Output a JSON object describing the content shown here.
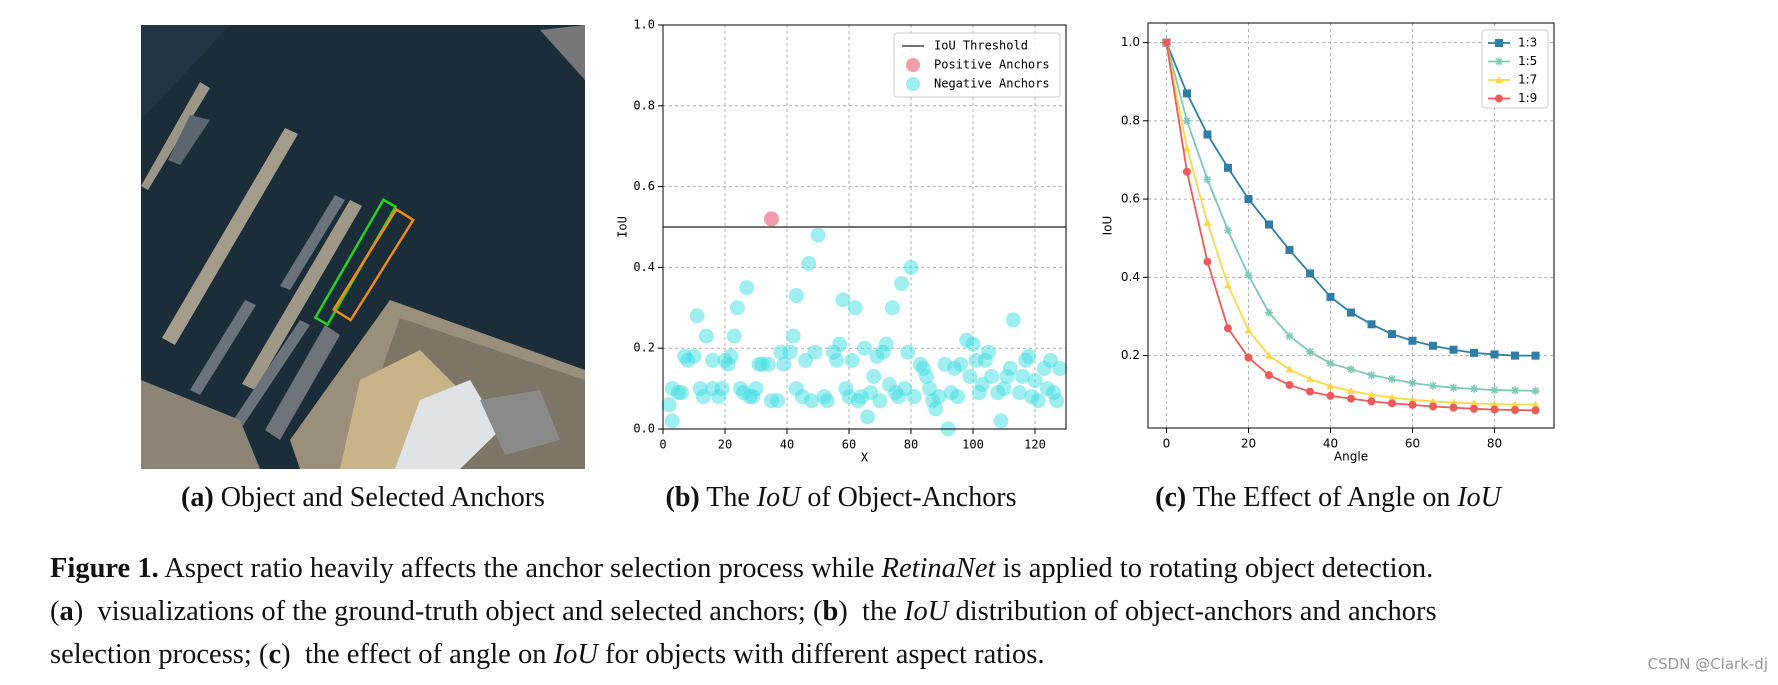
{
  "subcaptions": [
    [
      {
        "text": "(a)",
        "style": "bold"
      },
      {
        "text": " Object and Selected Anchors",
        "style": "normal"
      }
    ],
    [
      {
        "text": "(b)",
        "style": "bold"
      },
      {
        "text": " The ",
        "style": "normal"
      },
      {
        "text": "IoU",
        "style": "italic"
      },
      {
        "text": " of Object-Anchors",
        "style": "normal"
      }
    ],
    [
      {
        "text": "(c)",
        "style": "bold"
      },
      {
        "text": " The Effect of Angle on ",
        "style": "normal"
      },
      {
        "text": "IoU",
        "style": "italic"
      }
    ]
  ],
  "caption": [
    [
      {
        "text": "Figure 1.",
        "style": "bold"
      },
      {
        "text": " Aspect ratio heavily affects the anchor selection process while ",
        "style": "normal"
      },
      {
        "text": "RetinaNet",
        "style": "italic"
      },
      {
        "text": " is applied to rotating object detection.",
        "style": "normal"
      }
    ],
    [
      {
        "text": "(",
        "style": "normal"
      },
      {
        "text": "a",
        "style": "bold"
      },
      {
        "text": ")  visualizations of the ground-truth object and selected anchors; (",
        "style": "normal"
      },
      {
        "text": "b",
        "style": "bold"
      },
      {
        "text": ")  the ",
        "style": "normal"
      },
      {
        "text": "IoU",
        "style": "italic"
      },
      {
        "text": " distribution of object-anchors and anchors",
        "style": "normal"
      }
    ],
    [
      {
        "text": "selection process; (",
        "style": "normal"
      },
      {
        "text": "c",
        "style": "bold"
      },
      {
        "text": ")  the effect of angle on ",
        "style": "normal"
      },
      {
        "text": "IoU",
        "style": "italic"
      },
      {
        "text": " for objects with different aspect ratios.",
        "style": "normal"
      }
    ]
  ],
  "watermark": "CSDN @Clark-dj",
  "chart_data": [
    {
      "type": "scatter",
      "xlabel": "X",
      "ylabel": "IoU",
      "xlim": [
        0,
        130
      ],
      "ylim": [
        0,
        1
      ],
      "xticks": [
        0,
        20,
        40,
        60,
        80,
        100,
        120
      ],
      "yticks": [
        {
          "value": 0,
          "label": "0.0"
        },
        {
          "value": 0.2,
          "label": "0.2"
        },
        {
          "value": 0.4,
          "label": "0.4"
        },
        {
          "value": 0.6,
          "label": "0.6"
        },
        {
          "value": 0.8,
          "label": "0.8"
        },
        {
          "value": 1,
          "label": "1.0"
        }
      ],
      "grid": true,
      "legend": "upper right",
      "threshold": {
        "name": "IoU Threshold",
        "value": 0.5,
        "color": "#222222"
      },
      "series": [
        {
          "name": "Positive Anchors",
          "color": "#f07a90",
          "x": [
            35
          ],
          "values": [
            0.52
          ]
        },
        {
          "name": "Negative Anchors",
          "color": "#3fdde2",
          "x": [
            2,
            3,
            3,
            5,
            6,
            7,
            8,
            10,
            11,
            12,
            13,
            14,
            16,
            16,
            18,
            19,
            20,
            21,
            22,
            23,
            24,
            25,
            26,
            27,
            28,
            29,
            30,
            31,
            32,
            34,
            35,
            37,
            38,
            39,
            41,
            42,
            43,
            43,
            45,
            46,
            47,
            48,
            49,
            50,
            52,
            53,
            55,
            56,
            57,
            58,
            59,
            60,
            61,
            62,
            63,
            64,
            65,
            66,
            67,
            68,
            69,
            70,
            71,
            72,
            73,
            74,
            75,
            76,
            77,
            78,
            79,
            80,
            81,
            83,
            84,
            85,
            86,
            87,
            88,
            89,
            91,
            92,
            93,
            94,
            95,
            96,
            98,
            99,
            100,
            101,
            102,
            103,
            104,
            105,
            106,
            108,
            109,
            110,
            111,
            112,
            113,
            115,
            116,
            117,
            118,
            119,
            120,
            121,
            123,
            124,
            125,
            126,
            127,
            128
          ],
          "values": [
            0.06,
            0.1,
            0.02,
            0.09,
            0.09,
            0.18,
            0.17,
            0.18,
            0.28,
            0.1,
            0.08,
            0.23,
            0.17,
            0.1,
            0.08,
            0.1,
            0.17,
            0.16,
            0.18,
            0.23,
            0.3,
            0.1,
            0.09,
            0.35,
            0.08,
            0.08,
            0.1,
            0.16,
            0.16,
            0.16,
            0.07,
            0.07,
            0.19,
            0.16,
            0.19,
            0.23,
            0.33,
            0.1,
            0.08,
            0.17,
            0.41,
            0.07,
            0.19,
            0.48,
            0.08,
            0.07,
            0.19,
            0.17,
            0.21,
            0.32,
            0.1,
            0.08,
            0.17,
            0.3,
            0.07,
            0.08,
            0.2,
            0.03,
            0.09,
            0.13,
            0.18,
            0.07,
            0.19,
            0.21,
            0.11,
            0.3,
            0.09,
            0.08,
            0.36,
            0.1,
            0.19,
            0.4,
            0.08,
            0.16,
            0.15,
            0.13,
            0.1,
            0.07,
            0.05,
            0.08,
            0.16,
            0,
            0.09,
            0.15,
            0.08,
            0.16,
            0.22,
            0.13,
            0.21,
            0.17,
            0.09,
            0.11,
            0.17,
            0.19,
            0.13,
            0.09,
            0.02,
            0.1,
            0.13,
            0.15,
            0.27,
            0.09,
            0.13,
            0.17,
            0.18,
            0.08,
            0.12,
            0.07,
            0.15,
            0.1,
            0.17,
            0.09,
            0.07,
            0.15
          ]
        }
      ]
    },
    {
      "type": "line",
      "xlabel": "Angle",
      "ylabel": "IoU",
      "xlim": [
        -4.5,
        94.5
      ],
      "ylim": [
        0.015,
        1.05
      ],
      "xticks": [
        0,
        20,
        40,
        60,
        80
      ],
      "yticks": [
        0.2,
        0.4,
        0.6,
        0.8,
        {
          "value": 1,
          "label": "1.0"
        }
      ],
      "grid": true,
      "legend": "upper right",
      "x": [
        0,
        5,
        10,
        15,
        20,
        25,
        30,
        35,
        40,
        45,
        50,
        55,
        60,
        65,
        70,
        75,
        80,
        85,
        90
      ],
      "series": [
        {
          "name": "1:3",
          "color": "#2e7ea6",
          "marker": "square",
          "values": [
            1.0,
            0.87,
            0.765,
            0.68,
            0.6,
            0.535,
            0.47,
            0.41,
            0.35,
            0.31,
            0.28,
            0.255,
            0.238,
            0.225,
            0.215,
            0.207,
            0.203,
            0.2,
            0.2
          ]
        },
        {
          "name": "1:5",
          "color": "#7ec8b8",
          "marker": "star",
          "values": [
            1.0,
            0.8,
            0.65,
            0.52,
            0.405,
            0.31,
            0.25,
            0.21,
            0.18,
            0.165,
            0.15,
            0.14,
            0.13,
            0.123,
            0.118,
            0.115,
            0.112,
            0.111,
            0.11
          ]
        },
        {
          "name": "1:7",
          "color": "#f9d94a",
          "marker": "triangle",
          "values": [
            1.0,
            0.73,
            0.54,
            0.38,
            0.265,
            0.2,
            0.165,
            0.14,
            0.122,
            0.11,
            0.1,
            0.093,
            0.087,
            0.083,
            0.08,
            0.078,
            0.076,
            0.075,
            0.075
          ]
        },
        {
          "name": "1:9",
          "color": "#ec5a5a",
          "marker": "circle",
          "values": [
            1.0,
            0.67,
            0.44,
            0.27,
            0.195,
            0.15,
            0.125,
            0.108,
            0.097,
            0.09,
            0.083,
            0.078,
            0.074,
            0.07,
            0.067,
            0.064,
            0.062,
            0.061,
            0.06
          ]
        }
      ]
    }
  ]
}
